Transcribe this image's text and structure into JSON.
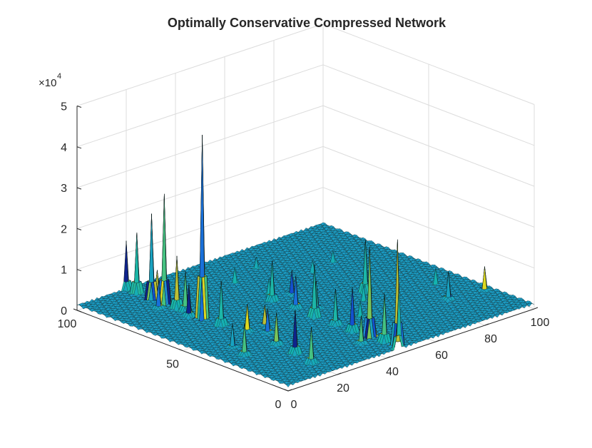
{
  "chart_data": {
    "type": "surface",
    "title": "Optimally Conservative Compressed Network",
    "xlabel": "",
    "ylabel": "",
    "zlabel": "",
    "xlim": [
      0,
      100
    ],
    "ylim": [
      0,
      100
    ],
    "zlim": [
      0,
      50000
    ],
    "x_ticks": [
      0,
      20,
      40,
      60,
      80,
      100
    ],
    "y_ticks": [
      0,
      50,
      100
    ],
    "z_ticks": [
      0,
      1,
      2,
      3,
      4,
      5
    ],
    "z_tick_labels": [
      "0",
      "1",
      "2",
      "3",
      "4",
      "5"
    ],
    "z_exponent_base": "×10",
    "z_exponent": "4",
    "grid": true,
    "grid_size": 100,
    "colormap": "parula",
    "surface_baseline_z": 1500,
    "peaks": [
      {
        "x": 20,
        "y": 100,
        "z": 13000
      },
      {
        "x": 20,
        "y": 95,
        "z": 16000
      },
      {
        "x": 20,
        "y": 88,
        "z": 22000
      },
      {
        "x": 20,
        "y": 82,
        "z": 28000
      },
      {
        "x": 20,
        "y": 76,
        "z": 14000
      },
      {
        "x": 20,
        "y": 72,
        "z": 11000
      },
      {
        "x": 20,
        "y": 64,
        "z": 46000
      },
      {
        "x": 20,
        "y": 55,
        "z": 12000
      },
      {
        "x": 22,
        "y": 45,
        "z": 8000
      },
      {
        "x": 18,
        "y": 68,
        "z": 9000
      },
      {
        "x": 24,
        "y": 90,
        "z": 7000
      },
      {
        "x": 16,
        "y": 80,
        "z": 8000
      },
      {
        "x": 20,
        "y": 20,
        "z": 12000
      },
      {
        "x": 18,
        "y": 10,
        "z": 10000
      },
      {
        "x": 21,
        "y": 30,
        "z": 9000
      },
      {
        "x": 30,
        "y": 46,
        "z": 6000
      },
      {
        "x": 26,
        "y": 40,
        "z": 7000
      },
      {
        "x": 10,
        "y": 38,
        "z": 7000
      },
      {
        "x": 8,
        "y": 30,
        "z": 9000
      },
      {
        "x": 45,
        "y": 0,
        "z": 17000
      },
      {
        "x": 46,
        "y": 8,
        "z": 13000
      },
      {
        "x": 46,
        "y": 15,
        "z": 23000
      },
      {
        "x": 45,
        "y": 22,
        "z": 12000
      },
      {
        "x": 47,
        "y": 3,
        "z": 27000
      },
      {
        "x": 45,
        "y": 30,
        "z": 10000
      },
      {
        "x": 45,
        "y": 40,
        "z": 14000
      },
      {
        "x": 46,
        "y": 50,
        "z": 9000
      },
      {
        "x": 45,
        "y": 60,
        "z": 11000
      },
      {
        "x": 40,
        "y": 12,
        "z": 8000
      },
      {
        "x": 50,
        "y": 45,
        "z": 8000
      },
      {
        "x": 53,
        "y": 60,
        "z": 7000
      },
      {
        "x": 70,
        "y": 45,
        "z": 14000
      },
      {
        "x": 84,
        "y": 22,
        "z": 8000
      },
      {
        "x": 97,
        "y": 20,
        "z": 7000
      },
      {
        "x": 55,
        "y": 30,
        "z": 5000
      },
      {
        "x": 65,
        "y": 40,
        "z": 5000
      },
      {
        "x": 90,
        "y": 35,
        "z": 5000
      },
      {
        "x": 48,
        "y": 65,
        "z": 5000
      },
      {
        "x": 47,
        "y": 80,
        "z": 5000
      },
      {
        "x": 60,
        "y": 85,
        "z": 4000
      },
      {
        "x": 70,
        "y": 70,
        "z": 4000
      },
      {
        "x": 80,
        "y": 72,
        "z": 4000
      }
    ]
  }
}
